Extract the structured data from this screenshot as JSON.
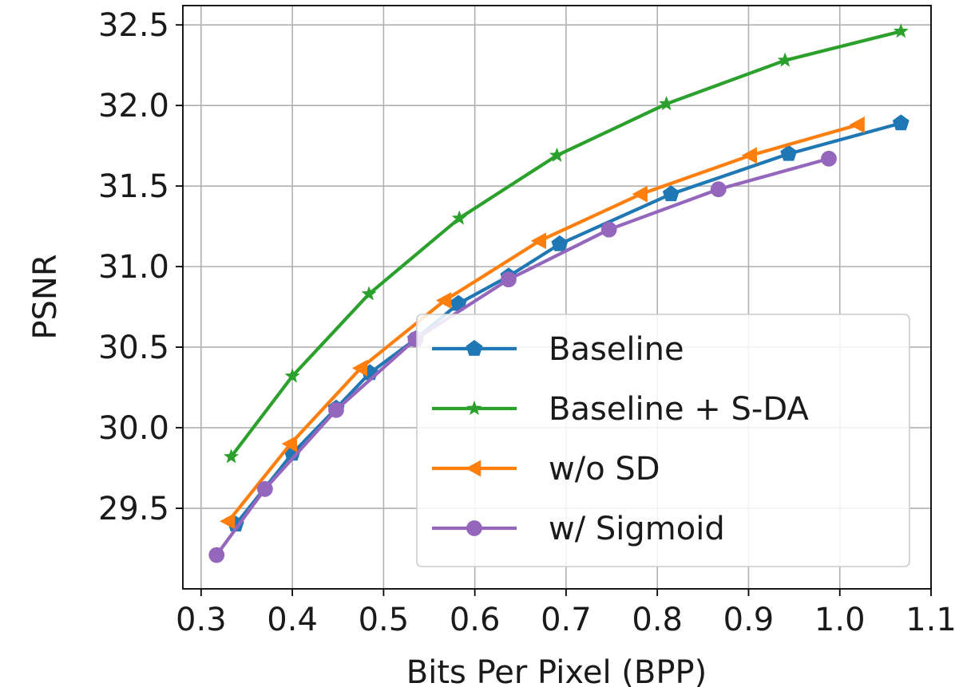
{
  "chart_data": {
    "type": "line",
    "title": "",
    "xlabel": "Bits Per Pixel (BPP)",
    "ylabel": "PSNR",
    "xlim": [
      0.28,
      1.1
    ],
    "ylim": [
      29.0,
      32.62
    ],
    "xticks": [
      0.3,
      0.4,
      0.5,
      0.6,
      0.7,
      0.8,
      0.9,
      1.0,
      1.1
    ],
    "xtick_labels": [
      "0.3",
      "0.4",
      "0.5",
      "0.6",
      "0.7",
      "0.8",
      "0.9",
      "1.0",
      "1.1"
    ],
    "yticks": [
      29.5,
      30.0,
      30.5,
      31.0,
      31.5,
      32.0,
      32.5
    ],
    "ytick_labels": [
      "29.5",
      "30.0",
      "30.5",
      "31.0",
      "31.5",
      "32.0",
      "32.5"
    ],
    "grid": true,
    "legend_position": "lower-right",
    "series": [
      {
        "name": "Baseline",
        "color": "#1f77b4",
        "marker": "pentagon",
        "x": [
          0.338,
          0.4,
          0.448,
          0.485,
          0.535,
          0.582,
          0.637,
          0.693,
          0.815,
          0.944,
          1.067
        ],
        "y": [
          29.4,
          29.84,
          30.12,
          30.34,
          30.55,
          30.77,
          30.94,
          31.14,
          31.45,
          31.7,
          31.89
        ]
      },
      {
        "name": "Baseline + S-DA",
        "color": "#2ca02c",
        "marker": "star",
        "x": [
          0.333,
          0.4,
          0.484,
          0.583,
          0.69,
          0.81,
          0.94,
          1.067
        ],
        "y": [
          29.82,
          30.32,
          30.83,
          31.3,
          31.69,
          32.01,
          32.28,
          32.46
        ]
      },
      {
        "name": "w/o SD",
        "color": "#ff7f0e",
        "marker": "triangle-left",
        "x": [
          0.33,
          0.398,
          0.475,
          0.567,
          0.671,
          0.782,
          0.902,
          1.02
        ],
        "y": [
          29.42,
          29.9,
          30.37,
          30.79,
          31.16,
          31.45,
          31.69,
          31.88
        ]
      },
      {
        "name": "w/ Sigmoid",
        "color": "#9467bd",
        "marker": "circle",
        "x": [
          0.317,
          0.37,
          0.448,
          0.535,
          0.637,
          0.747,
          0.867,
          0.988
        ],
        "y": [
          29.21,
          29.62,
          30.11,
          30.55,
          30.92,
          31.23,
          31.48,
          31.67
        ]
      }
    ]
  }
}
